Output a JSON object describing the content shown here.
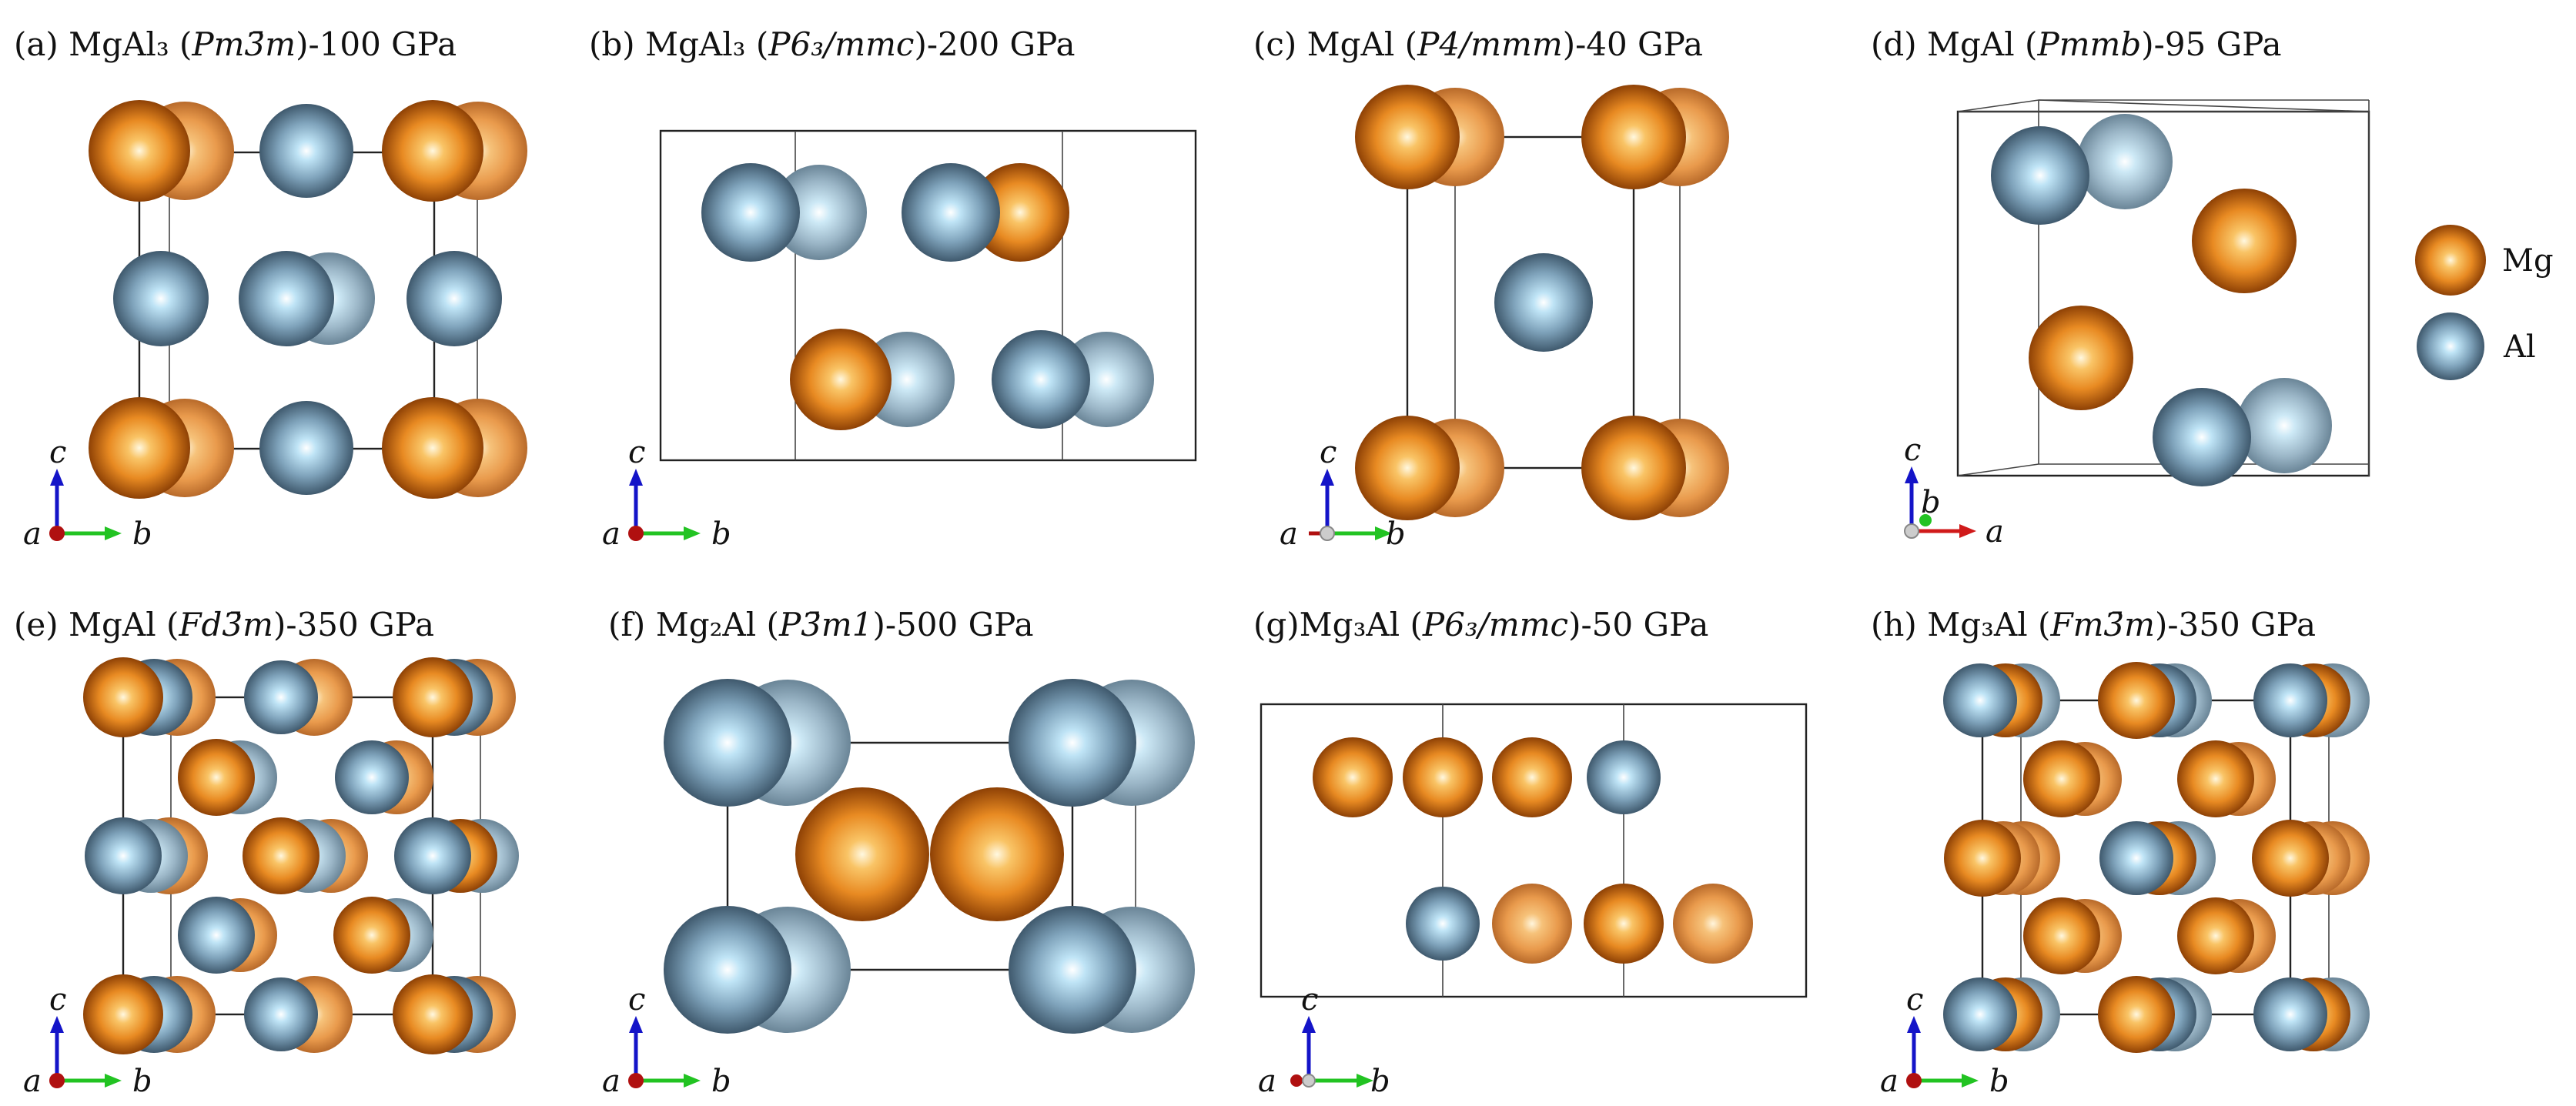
{
  "figure": {
    "panels": [
      {
        "id": "a",
        "label": "(a)",
        "formula": "MgAl₃",
        "space_group": "Pm3̄m",
        "pressure": "100 GPa",
        "axes": [
          "a",
          "c",
          "b"
        ]
      },
      {
        "id": "b",
        "label": "(b)",
        "formula": "MgAl₃",
        "space_group": "P6₃/mmc",
        "pressure": "200 GPa",
        "axes": [
          "a",
          "c",
          "b"
        ]
      },
      {
        "id": "c",
        "label": "(c)",
        "formula": "MgAl",
        "space_group": "P4/mmm",
        "pressure": "40 GPa",
        "axes": [
          "a",
          "c",
          "b"
        ]
      },
      {
        "id": "d",
        "label": "(d)",
        "formula": "MgAl",
        "space_group": "Pmmb",
        "pressure": "95 GPa",
        "axes": [
          "b",
          "c",
          "a"
        ]
      },
      {
        "id": "e",
        "label": "(e)",
        "formula": "MgAl",
        "space_group": "Fd3̄m",
        "pressure": "350 GPa",
        "axes": [
          "a",
          "c",
          "b"
        ]
      },
      {
        "id": "f",
        "label": "(f)",
        "formula": "Mg₂Al",
        "space_group": "P3̄m1",
        "pressure": "500 GPa",
        "axes": [
          "a",
          "c",
          "b"
        ]
      },
      {
        "id": "g",
        "label": "(g)",
        "formula": "Mg₃Al",
        "space_group": "P6₃/mmc",
        "pressure": "50 GPa",
        "axes": [
          "a",
          "c",
          "b"
        ]
      },
      {
        "id": "h",
        "label": "(h)",
        "formula": "Mg₃Al",
        "space_group": "Fm3̄m",
        "pressure": "350 GPa",
        "axes": [
          "a",
          "c",
          "b"
        ]
      }
    ],
    "legend": [
      {
        "label": "Mg",
        "color": "#e3811f"
      },
      {
        "label": "Al",
        "color": "#6f94ae"
      }
    ],
    "colors": {
      "mg": "#e3811f",
      "al": "#6f94ae",
      "axis_a": "#b01010",
      "axis_b": "#22c322",
      "axis_c": "#1414c8"
    }
  }
}
